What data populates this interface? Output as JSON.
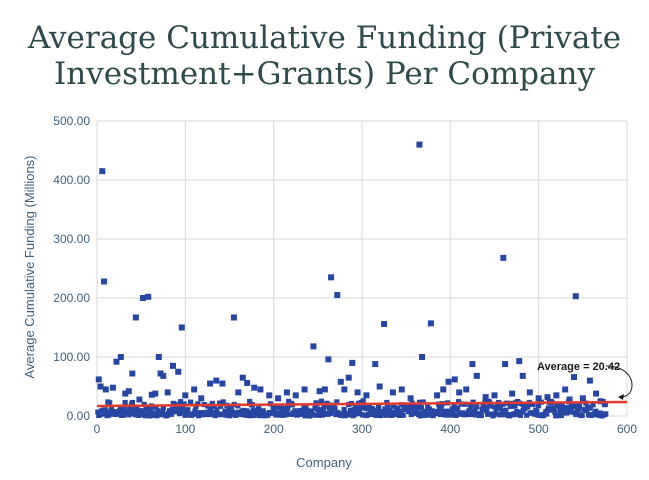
{
  "title_line1": "Average Cumulative Funding (Private",
  "title_line2": "Investment+Grants) Per Company",
  "colors": {
    "marker": "#2746a3",
    "average_line": "#e23b2e",
    "grid": "#d9d9d9",
    "title": "#2f4a4a",
    "tick": "#43607a"
  },
  "chart_data": {
    "type": "scatter",
    "xlabel": "Company",
    "ylabel": "Average Cumulative Funding (Millions)",
    "xlim": [
      0,
      600
    ],
    "ylim": [
      0,
      500
    ],
    "x_ticks": [
      "0",
      "100",
      "200",
      "300",
      "400",
      "500",
      "600"
    ],
    "y_ticks": [
      "0.00",
      "100.00",
      "200.00",
      "300.00",
      "400.00",
      "500.00"
    ],
    "grid": true,
    "average": 20.42,
    "average_label": "Average = 20.42",
    "points": [
      {
        "x": 2,
        "y": 62
      },
      {
        "x": 4,
        "y": 50
      },
      {
        "x": 6,
        "y": 415
      },
      {
        "x": 8,
        "y": 228
      },
      {
        "x": 10,
        "y": 45
      },
      {
        "x": 18,
        "y": 48
      },
      {
        "x": 22,
        "y": 92
      },
      {
        "x": 27,
        "y": 100
      },
      {
        "x": 32,
        "y": 38
      },
      {
        "x": 36,
        "y": 42
      },
      {
        "x": 40,
        "y": 72
      },
      {
        "x": 44,
        "y": 167
      },
      {
        "x": 48,
        "y": 28
      },
      {
        "x": 52,
        "y": 200
      },
      {
        "x": 58,
        "y": 202
      },
      {
        "x": 62,
        "y": 36
      },
      {
        "x": 66,
        "y": 38
      },
      {
        "x": 70,
        "y": 100
      },
      {
        "x": 72,
        "y": 72
      },
      {
        "x": 75,
        "y": 68
      },
      {
        "x": 80,
        "y": 40
      },
      {
        "x": 86,
        "y": 85
      },
      {
        "x": 92,
        "y": 75
      },
      {
        "x": 96,
        "y": 150
      },
      {
        "x": 100,
        "y": 35
      },
      {
        "x": 110,
        "y": 45
      },
      {
        "x": 118,
        "y": 30
      },
      {
        "x": 128,
        "y": 55
      },
      {
        "x": 135,
        "y": 60
      },
      {
        "x": 142,
        "y": 55
      },
      {
        "x": 155,
        "y": 167
      },
      {
        "x": 160,
        "y": 40
      },
      {
        "x": 165,
        "y": 65
      },
      {
        "x": 170,
        "y": 56
      },
      {
        "x": 178,
        "y": 48
      },
      {
        "x": 185,
        "y": 45
      },
      {
        "x": 195,
        "y": 35
      },
      {
        "x": 205,
        "y": 30
      },
      {
        "x": 215,
        "y": 40
      },
      {
        "x": 225,
        "y": 35
      },
      {
        "x": 235,
        "y": 45
      },
      {
        "x": 245,
        "y": 118
      },
      {
        "x": 252,
        "y": 42
      },
      {
        "x": 258,
        "y": 45
      },
      {
        "x": 262,
        "y": 96
      },
      {
        "x": 265,
        "y": 235
      },
      {
        "x": 272,
        "y": 205
      },
      {
        "x": 276,
        "y": 58
      },
      {
        "x": 280,
        "y": 45
      },
      {
        "x": 285,
        "y": 65
      },
      {
        "x": 289,
        "y": 90
      },
      {
        "x": 295,
        "y": 40
      },
      {
        "x": 305,
        "y": 35
      },
      {
        "x": 315,
        "y": 88
      },
      {
        "x": 320,
        "y": 50
      },
      {
        "x": 325,
        "y": 156
      },
      {
        "x": 335,
        "y": 40
      },
      {
        "x": 345,
        "y": 45
      },
      {
        "x": 355,
        "y": 30
      },
      {
        "x": 365,
        "y": 460
      },
      {
        "x": 368,
        "y": 100
      },
      {
        "x": 378,
        "y": 157
      },
      {
        "x": 385,
        "y": 35
      },
      {
        "x": 392,
        "y": 45
      },
      {
        "x": 398,
        "y": 58
      },
      {
        "x": 405,
        "y": 62
      },
      {
        "x": 410,
        "y": 40
      },
      {
        "x": 418,
        "y": 45
      },
      {
        "x": 425,
        "y": 88
      },
      {
        "x": 430,
        "y": 68
      },
      {
        "x": 440,
        "y": 32
      },
      {
        "x": 450,
        "y": 35
      },
      {
        "x": 460,
        "y": 268
      },
      {
        "x": 462,
        "y": 88
      },
      {
        "x": 470,
        "y": 38
      },
      {
        "x": 478,
        "y": 93
      },
      {
        "x": 482,
        "y": 68
      },
      {
        "x": 490,
        "y": 40
      },
      {
        "x": 500,
        "y": 30
      },
      {
        "x": 510,
        "y": 32
      },
      {
        "x": 520,
        "y": 35
      },
      {
        "x": 530,
        "y": 45
      },
      {
        "x": 535,
        "y": 28
      },
      {
        "x": 540,
        "y": 66
      },
      {
        "x": 542,
        "y": 203
      },
      {
        "x": 550,
        "y": 30
      },
      {
        "x": 558,
        "y": 60
      },
      {
        "x": 565,
        "y": 38
      },
      {
        "x": 570,
        "y": 25
      },
      {
        "x": 575,
        "y": 20
      }
    ]
  }
}
